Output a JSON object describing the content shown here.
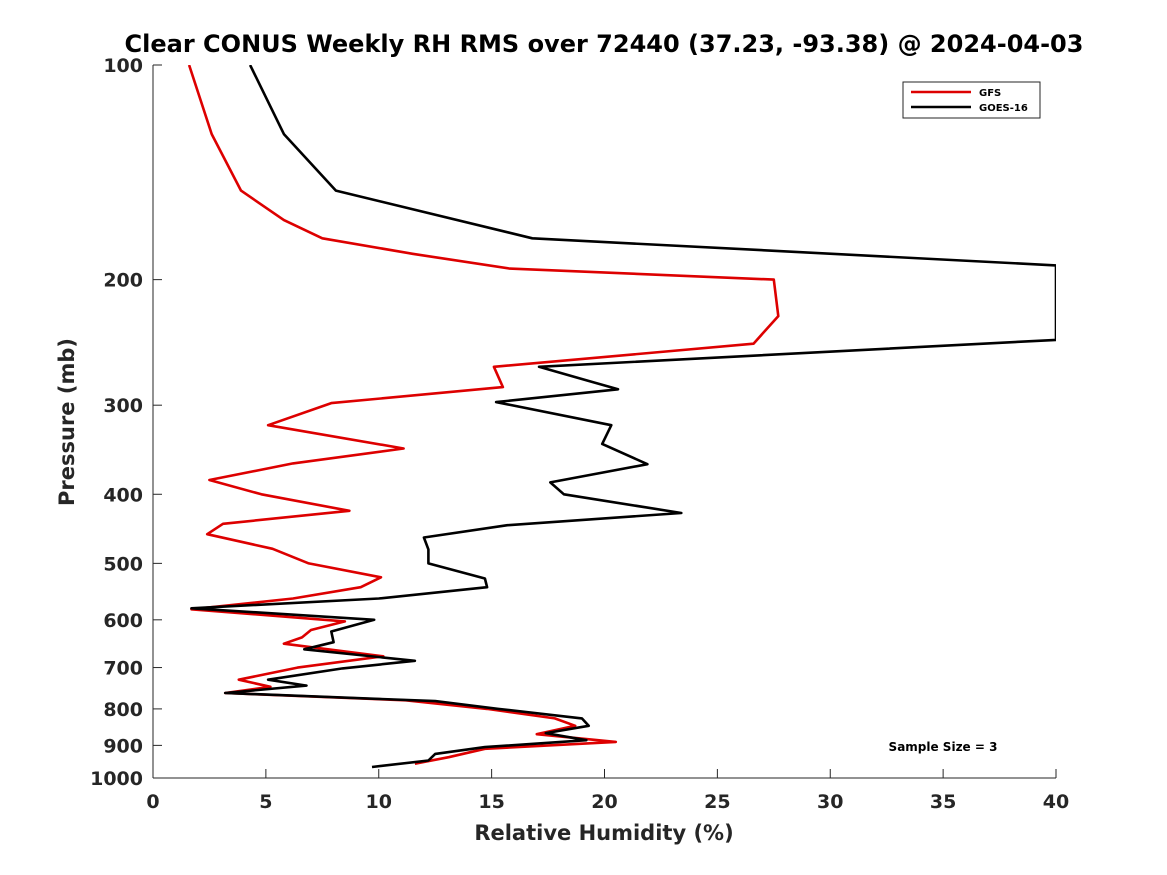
{
  "chart_data": {
    "type": "line",
    "title": "Clear CONUS Weekly RH RMS over 72440 (37.23, -93.38) @ 2024-04-03",
    "xlabel": "Relative Humidity (%)",
    "ylabel": "Pressure (mb)",
    "xlim": [
      0,
      40
    ],
    "ylim": [
      100,
      1000
    ],
    "y_scale": "log",
    "y_reversed": true,
    "x_ticks": [
      0,
      5,
      10,
      15,
      20,
      25,
      30,
      35,
      40
    ],
    "y_ticks": [
      100,
      200,
      300,
      400,
      500,
      600,
      700,
      800,
      900,
      1000
    ],
    "legend_position": "top-right",
    "annotation": "Sample Size = 3",
    "series": [
      {
        "name": "GFS",
        "color": "#dd0000",
        "points": [
          [
            1.6,
            100
          ],
          [
            2.6,
            125
          ],
          [
            3.9,
            150
          ],
          [
            5.8,
            165
          ],
          [
            7.5,
            175
          ],
          [
            11.5,
            184
          ],
          [
            15.8,
            193
          ],
          [
            27.5,
            200
          ],
          [
            27.7,
            225
          ],
          [
            26.6,
            246
          ],
          [
            15.1,
            265
          ],
          [
            15.5,
            283
          ],
          [
            7.9,
            298
          ],
          [
            5.1,
            320
          ],
          [
            11.1,
            345
          ],
          [
            6.2,
            362
          ],
          [
            2.5,
            382
          ],
          [
            4.8,
            400
          ],
          [
            8.7,
            422
          ],
          [
            3.1,
            440
          ],
          [
            2.4,
            455
          ],
          [
            5.3,
            477
          ],
          [
            6.9,
            500
          ],
          [
            10.1,
            523
          ],
          [
            9.2,
            540
          ],
          [
            6.2,
            560
          ],
          [
            1.7,
            580
          ],
          [
            8.5,
            603
          ],
          [
            7.0,
            620
          ],
          [
            6.6,
            635
          ],
          [
            5.8,
            648
          ],
          [
            10.2,
            675
          ],
          [
            6.4,
            700
          ],
          [
            3.8,
            728
          ],
          [
            5.2,
            745
          ],
          [
            3.2,
            760
          ],
          [
            11.2,
            778
          ],
          [
            14.8,
            800
          ],
          [
            17.8,
            825
          ],
          [
            18.7,
            845
          ],
          [
            17.0,
            868
          ],
          [
            20.5,
            890
          ],
          [
            14.7,
            910
          ],
          [
            13.1,
            935
          ],
          [
            11.6,
            955
          ]
        ]
      },
      {
        "name": "GOES-16",
        "color": "#000000",
        "points": [
          [
            4.3,
            100
          ],
          [
            5.8,
            125
          ],
          [
            8.1,
            150
          ],
          [
            16.8,
            175
          ],
          [
            40,
            191
          ],
          [
            40,
            243
          ],
          [
            17.1,
            265
          ],
          [
            20.6,
            285
          ],
          [
            15.2,
            297
          ],
          [
            20.3,
            320
          ],
          [
            19.9,
            340
          ],
          [
            21.9,
            363
          ],
          [
            17.6,
            385
          ],
          [
            18.2,
            400
          ],
          [
            23.4,
            425
          ],
          [
            15.7,
            442
          ],
          [
            12.0,
            460
          ],
          [
            12.2,
            478
          ],
          [
            12.2,
            500
          ],
          [
            14.7,
            525
          ],
          [
            14.8,
            540
          ],
          [
            10.0,
            560
          ],
          [
            1.7,
            578
          ],
          [
            9.8,
            600
          ],
          [
            7.9,
            623
          ],
          [
            8.0,
            645
          ],
          [
            6.7,
            660
          ],
          [
            11.6,
            685
          ],
          [
            8.4,
            702
          ],
          [
            5.1,
            728
          ],
          [
            6.8,
            742
          ],
          [
            3.2,
            760
          ],
          [
            12.5,
            780
          ],
          [
            15.3,
            800
          ],
          [
            19.0,
            825
          ],
          [
            19.3,
            845
          ],
          [
            17.4,
            865
          ],
          [
            19.2,
            885
          ],
          [
            14.7,
            905
          ],
          [
            12.5,
            925
          ],
          [
            12.2,
            945
          ],
          [
            9.7,
            965
          ]
        ]
      }
    ]
  }
}
